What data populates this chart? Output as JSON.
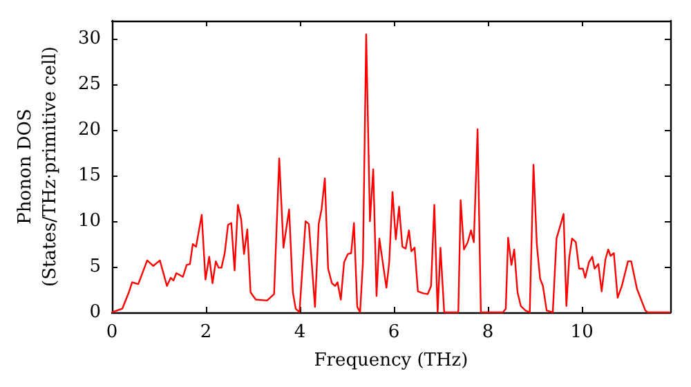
{
  "chart_data": {
    "type": "line",
    "xlabel": "Frequency (THz)",
    "ylabel": "Phonon DOS\n(States/THz·primitive cell)",
    "xlim": [
      0,
      11.88
    ],
    "ylim": [
      0,
      32
    ],
    "xticks": [
      0,
      2,
      4,
      6,
      8,
      10
    ],
    "yticks": [
      0,
      5,
      10,
      15,
      20,
      25,
      30
    ],
    "grid": false,
    "marker": "none",
    "line_style": "solid",
    "series": [
      {
        "color": "#ff0000",
        "x": [
          0,
          0.22,
          0.36,
          0.43,
          0.56,
          0.75,
          0.88,
          1.02,
          1.17,
          1.25,
          1.31,
          1.37,
          1.51,
          1.59,
          1.66,
          1.72,
          1.79,
          1.91,
          1.99,
          2.07,
          2.14,
          2.21,
          2.27,
          2.33,
          2.4,
          2.47,
          2.54,
          2.61,
          2.68,
          2.75,
          2.81,
          2.88,
          2.95,
          3.06,
          3.3,
          3.45,
          3.56,
          3.65,
          3.77,
          3.85,
          3.91,
          3.99,
          4.12,
          4.19,
          4.32,
          4.4,
          4.46,
          4.53,
          4.6,
          4.68,
          4.75,
          4.8,
          4.87,
          4.94,
          5.02,
          5.09,
          5.15,
          5.22,
          5.28,
          5.34,
          5.41,
          5.49,
          5.56,
          5.63,
          5.69,
          5.84,
          5.9,
          5.97,
          6.04,
          6.11,
          6.18,
          6.25,
          6.32,
          6.37,
          6.44,
          6.51,
          6.62,
          6.72,
          6.79,
          6.86,
          6.93,
          6.99,
          7.07,
          7.37,
          7.42,
          7.49,
          7.57,
          7.64,
          7.7,
          7.78,
          7.85,
          8.32,
          8.38,
          8.43,
          8.5,
          8.56,
          8.63,
          8.7,
          8.8,
          8.89,
          8.97,
          9.04,
          9.11,
          9.17,
          9.25,
          9.38,
          9.46,
          9.55,
          9.61,
          9.67,
          9.73,
          9.79,
          9.87,
          9.94,
          10.02,
          10.07,
          10.15,
          10.22,
          10.27,
          10.35,
          10.42,
          10.5,
          10.56,
          10.61,
          10.68,
          10.76,
          10.85,
          10.98,
          11.05,
          11.17,
          11.35,
          11.4,
          11.88
        ],
        "values": [
          0,
          0.4,
          2.2,
          3.3,
          3.1,
          5.7,
          5.1,
          5.7,
          2.9,
          3.8,
          3.5,
          4.3,
          3.9,
          5.2,
          5.3,
          7.5,
          7.2,
          10.7,
          3.6,
          6.1,
          3.2,
          5.6,
          4.9,
          4.9,
          6.5,
          9.6,
          9.8,
          4.6,
          11.8,
          10.2,
          6.4,
          9.1,
          2.2,
          1.4,
          1.3,
          2.0,
          16.9,
          7.1,
          11.3,
          2.2,
          0.4,
          0,
          10.0,
          9.7,
          0.6,
          9.7,
          11.3,
          14.7,
          4.8,
          3.2,
          2.9,
          3.3,
          1.4,
          5.5,
          6.4,
          6.5,
          9.8,
          0.6,
          0,
          5.5,
          30.5,
          10.0,
          15.7,
          1.8,
          8.1,
          2.7,
          5.5,
          13.2,
          8.0,
          11.6,
          7.2,
          7.0,
          9.0,
          6.7,
          7.1,
          2.3,
          2.1,
          2.0,
          2.9,
          11.8,
          0,
          7.1,
          0,
          0,
          12.3,
          6.9,
          7.7,
          9.0,
          7.7,
          20.1,
          0,
          0,
          0.4,
          8.2,
          5.2,
          6.9,
          2.2,
          0.7,
          0.2,
          0,
          16.2,
          7.5,
          3.7,
          2.9,
          0.2,
          0,
          8.1,
          9.7,
          10.8,
          0.7,
          6.0,
          8.1,
          7.7,
          4.8,
          4.8,
          3.8,
          5.5,
          6.1,
          4.8,
          5.3,
          2.3,
          5.8,
          6.9,
          6.2,
          6.5,
          1.6,
          2.9,
          5.6,
          5.6,
          2.6,
          0.2,
          0,
          0
        ]
      }
    ]
  }
}
